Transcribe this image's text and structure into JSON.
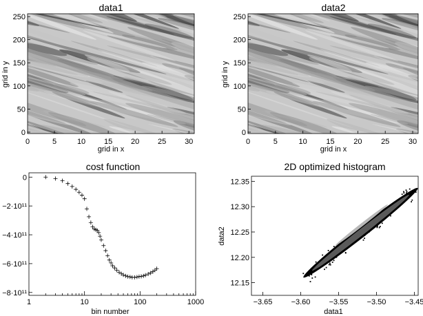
{
  "chart_data": [
    {
      "type": "heatmap",
      "title": "data1",
      "xlabel": "grid in x",
      "ylabel": "grid in y",
      "xlim": [
        0,
        31
      ],
      "ylim": [
        -3,
        256
      ],
      "xticks": [
        "0",
        "5",
        "10",
        "15",
        "20",
        "25",
        "30"
      ],
      "yticks": [
        "0",
        "50",
        "100",
        "150",
        "200",
        "250"
      ],
      "colormap": "grayscale",
      "pattern": "diagonal streaks descending from upper-left to lower-right"
    },
    {
      "type": "heatmap",
      "title": "data2",
      "xlabel": "grid in x",
      "ylabel": "grid in y",
      "xlim": [
        0,
        31
      ],
      "ylim": [
        -3,
        256
      ],
      "xticks": [
        "0",
        "5",
        "10",
        "15",
        "20",
        "25",
        "30"
      ],
      "yticks": [
        "0",
        "50",
        "100",
        "150",
        "200",
        "250"
      ],
      "colormap": "grayscale",
      "pattern": "diagonal streaks descending from upper-left to lower-right"
    },
    {
      "type": "scatter",
      "title": "cost function",
      "xlabel": "bin number",
      "ylabel": "",
      "xscale": "log",
      "xlim": [
        1,
        1000
      ],
      "ylim": [
        -820000000000.0,
        30000000000.0
      ],
      "xticks": [
        "1",
        "10",
        "100",
        "1000"
      ],
      "yticks": [
        "0",
        "−2·10¹¹",
        "−4·10¹¹",
        "−6·10¹¹",
        "−8·10¹¹"
      ],
      "marker": "+",
      "x": [
        2,
        3,
        4,
        5,
        6,
        7,
        8,
        9,
        10,
        11,
        12,
        13,
        14,
        15,
        16,
        17,
        18,
        19,
        20,
        22,
        24,
        26,
        28,
        30,
        32,
        35,
        38,
        42,
        46,
        50,
        55,
        60,
        66,
        72,
        80,
        88,
        96,
        105,
        115,
        125,
        140,
        155,
        170,
        185,
        200
      ],
      "y": [
        0.0,
        -10000000000.0,
        -25000000000.0,
        -45000000000.0,
        -65000000000.0,
        -85000000000.0,
        -105000000000.0,
        -125000000000.0,
        -150000000000.0,
        -220000000000.0,
        -275000000000.0,
        -315000000000.0,
        -345000000000.0,
        -360000000000.0,
        -365000000000.0,
        -370000000000.0,
        -385000000000.0,
        -410000000000.0,
        -435000000000.0,
        -475000000000.0,
        -510000000000.0,
        -545000000000.0,
        -575000000000.0,
        -595000000000.0,
        -615000000000.0,
        -630000000000.0,
        -645000000000.0,
        -660000000000.0,
        -670000000000.0,
        -678000000000.0,
        -685000000000.0,
        -690000000000.0,
        -692000000000.0,
        -695000000000.0,
        -695000000000.0,
        -693000000000.0,
        -690000000000.0,
        -688000000000.0,
        -685000000000.0,
        -680000000000.0,
        -672000000000.0,
        -665000000000.0,
        -655000000000.0,
        -645000000000.0,
        -635000000000.0
      ]
    },
    {
      "type": "heatmap",
      "title": "2D optimized histogram",
      "xlabel": "data1",
      "ylabel": "data2",
      "xlim": [
        -3.665,
        -3.445
      ],
      "ylim": [
        12.125,
        12.36
      ],
      "xticks": [
        "−3.65",
        "−3.60",
        "−3.55",
        "−3.50",
        "−3.45"
      ],
      "yticks": [
        "12.15",
        "12.20",
        "12.25",
        "12.30",
        "12.35"
      ],
      "colormap": "grayscale",
      "band_x": [
        -3.595,
        -3.447
      ],
      "band_y": [
        12.162,
        12.335
      ]
    }
  ]
}
